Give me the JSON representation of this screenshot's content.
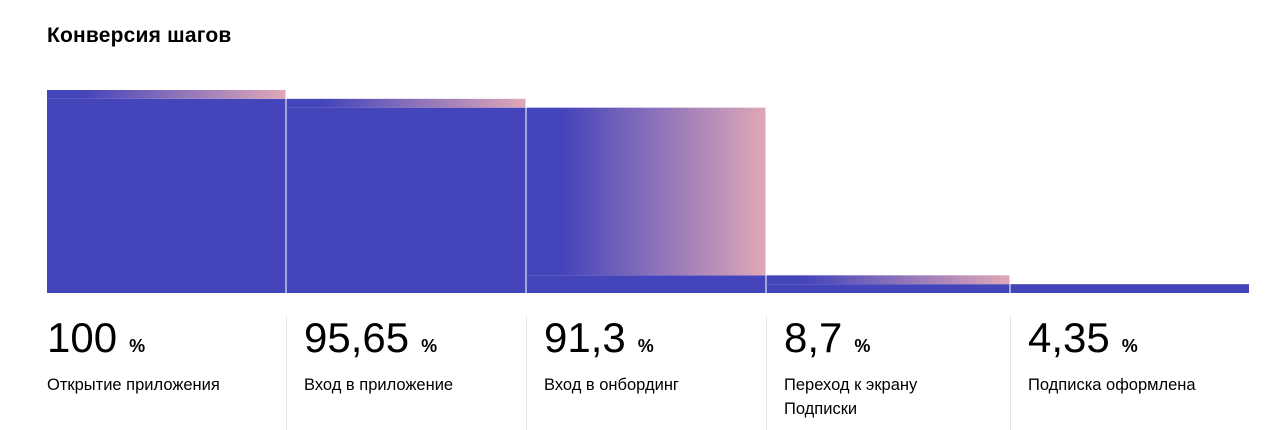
{
  "title": "Конверсия шагов",
  "unit_symbol": "%",
  "colors": {
    "bar": "#4444bb",
    "gradient_end": "#e0a8b8",
    "separator": "#e4e4e4"
  },
  "chart_data": {
    "type": "bar",
    "title": "Конверсия шагов",
    "categories": [
      "Открытие приложения",
      "Вход в приложение",
      "Вход в онбординг",
      "Переход к экрану Подписки",
      "Подписка оформлена"
    ],
    "values": [
      100,
      95.65,
      91.3,
      8.7,
      4.35
    ],
    "value_labels": [
      "100",
      "95,65",
      "91,3",
      "8,7",
      "4,35"
    ],
    "unit": "%",
    "ylim": [
      0,
      100
    ],
    "grid": false
  }
}
